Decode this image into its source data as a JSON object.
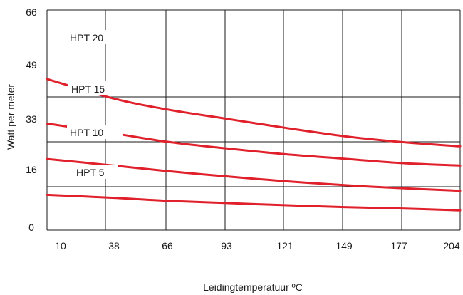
{
  "chart_data": {
    "type": "line",
    "title": "",
    "xlabel": "Leidingtemperatuur ºC",
    "ylabel": "Watt per meter",
    "x_ticks": [
      "10",
      "38",
      "66",
      "93",
      "121",
      "149",
      "177",
      "204"
    ],
    "y_ticks": [
      "0",
      "16",
      "33",
      "49",
      "66"
    ],
    "xlim": [
      10,
      204
    ],
    "ylim": [
      0,
      66
    ],
    "grid": true,
    "line_color": "#e0202a",
    "series": [
      {
        "name": "HPT 20",
        "x": [
          10,
          38,
          66,
          93,
          121,
          149,
          177,
          204
        ],
        "y": [
          52.5,
          48.4,
          44.5,
          41.2,
          38.0,
          35.0,
          33.0,
          31.3
        ]
      },
      {
        "name": "HPT 15",
        "x": [
          10,
          38,
          66,
          93,
          121,
          149,
          177,
          204
        ],
        "y": [
          39.5,
          36.0,
          33.0,
          30.5,
          28.3,
          26.6,
          25.0,
          24.0
        ]
      },
      {
        "name": "HPT 10",
        "x": [
          10,
          38,
          66,
          93,
          121,
          149,
          177,
          204
        ],
        "y": [
          26.5,
          24.0,
          21.9,
          19.9,
          18.1,
          16.6,
          15.5,
          14.5
        ]
      },
      {
        "name": "HPT 5",
        "x": [
          10,
          38,
          66,
          93,
          121,
          149,
          177,
          204
        ],
        "y": [
          13.0,
          11.9,
          10.8,
          10.0,
          9.2,
          8.5,
          8.0,
          7.3
        ]
      }
    ]
  }
}
